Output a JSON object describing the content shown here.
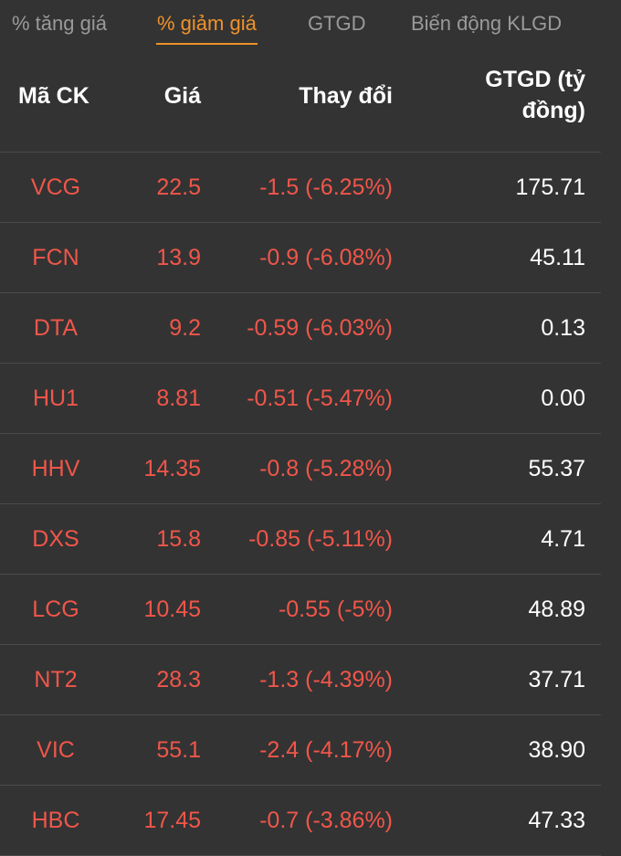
{
  "tabs": [
    {
      "label": "% tăng giá",
      "active": false
    },
    {
      "label": "% giảm giá",
      "active": true
    },
    {
      "label": "GTGD",
      "active": false
    },
    {
      "label": "Biến động KLGD",
      "active": false
    }
  ],
  "header": {
    "code": "Mã CK",
    "price": "Giá",
    "change": "Thay đổi",
    "value_line1": "GTGD (tỷ",
    "value_line2": "đồng)"
  },
  "colors": {
    "background": "#333333",
    "accent": "#f0922b",
    "down": "#f0564a",
    "text": "#ffffff",
    "muted": "#9a9a9a"
  },
  "rows": [
    {
      "code": "VCG",
      "price": "22.5",
      "change": "-1.5 (-6.25%)",
      "value": "175.71"
    },
    {
      "code": "FCN",
      "price": "13.9",
      "change": "-0.9 (-6.08%)",
      "value": "45.11"
    },
    {
      "code": "DTA",
      "price": "9.2",
      "change": "-0.59 (-6.03%)",
      "value": "0.13"
    },
    {
      "code": "HU1",
      "price": "8.81",
      "change": "-0.51 (-5.47%)",
      "value": "0.00"
    },
    {
      "code": "HHV",
      "price": "14.35",
      "change": "-0.8 (-5.28%)",
      "value": "55.37"
    },
    {
      "code": "DXS",
      "price": "15.8",
      "change": "-0.85 (-5.11%)",
      "value": "4.71"
    },
    {
      "code": "LCG",
      "price": "10.45",
      "change": "-0.55 (-5%)",
      "value": "48.89"
    },
    {
      "code": "NT2",
      "price": "28.3",
      "change": "-1.3 (-4.39%)",
      "value": "37.71"
    },
    {
      "code": "VIC",
      "price": "55.1",
      "change": "-2.4 (-4.17%)",
      "value": "38.90"
    },
    {
      "code": "HBC",
      "price": "17.45",
      "change": "-0.7 (-3.86%)",
      "value": "47.33"
    }
  ]
}
